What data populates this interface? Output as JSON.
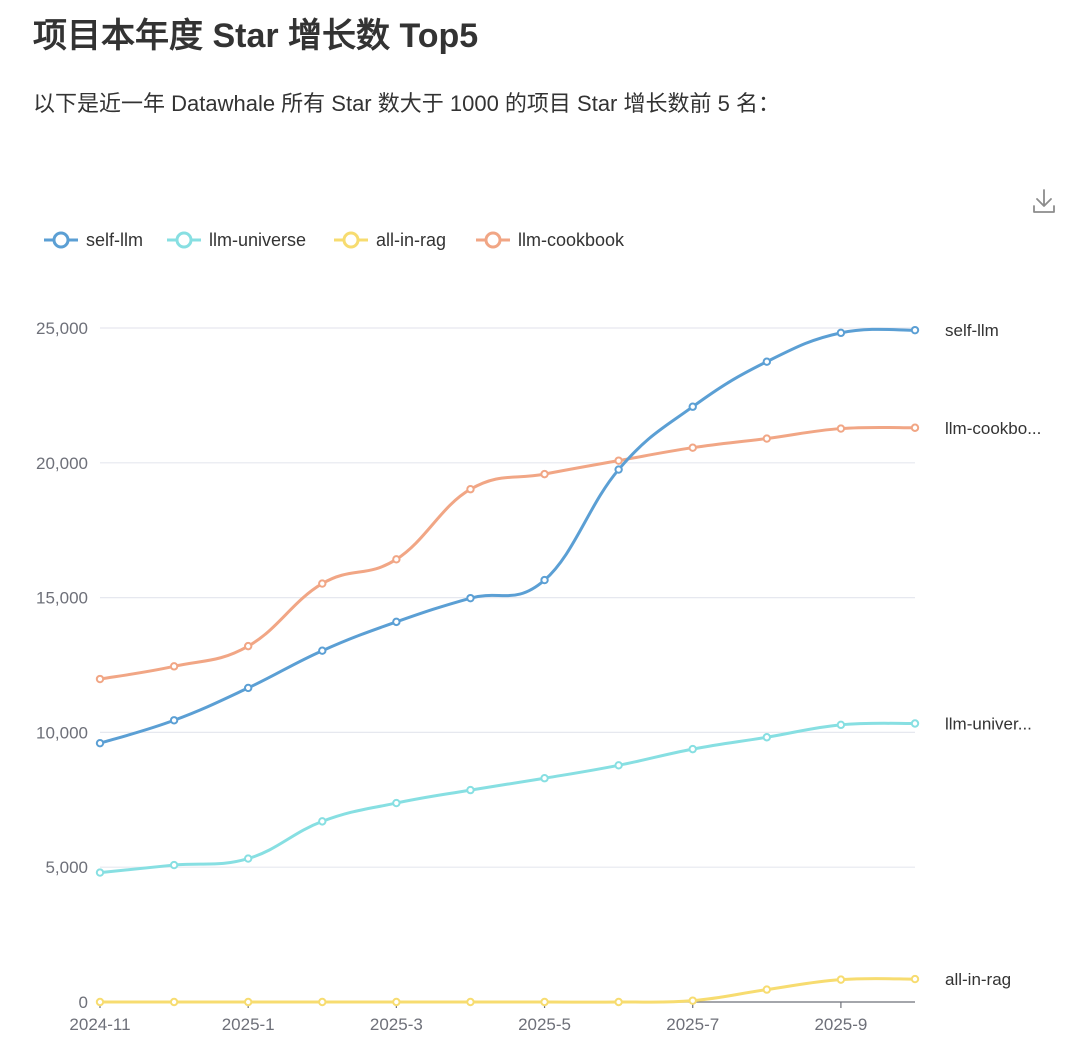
{
  "page": {
    "title": "项目本年度 Star 增长数 Top5",
    "description": "以下是近一年 Datawhale 所有 Star 数大于 1000 的项目 Star 增长数前 5 名："
  },
  "toolbar": {
    "download_icon": "download-icon"
  },
  "chart_data": {
    "type": "line",
    "smooth": true,
    "legend_position": "top-left",
    "grid": "horizontal",
    "x": [
      "2024-11",
      "2024-12",
      "2025-1",
      "2025-2",
      "2025-3",
      "2025-4",
      "2025-5",
      "2025-6",
      "2025-7",
      "2025-8",
      "2025-9",
      "2025-10"
    ],
    "x_tick_labels": [
      "2024-11",
      "2025-1",
      "2025-3",
      "2025-5",
      "2025-7",
      "2025-9"
    ],
    "ylim": [
      0,
      25000
    ],
    "y_ticks": [
      0,
      5000,
      10000,
      15000,
      20000,
      25000
    ],
    "y_tick_labels": [
      "0",
      "5,000",
      "10,000",
      "15,000",
      "20,000",
      "25,000"
    ],
    "series": [
      {
        "name": "self-llm",
        "end_label": "self-llm",
        "color": "#5b9fd4",
        "values": [
          9600,
          10450,
          11650,
          13030,
          14100,
          14980,
          15650,
          19750,
          22080,
          23750,
          24820,
          24920
        ]
      },
      {
        "name": "llm-universe",
        "end_label": "llm-univer...",
        "color": "#87dfe2",
        "values": [
          4800,
          5080,
          5320,
          6700,
          7380,
          7860,
          8300,
          8780,
          9380,
          9820,
          10280,
          10330
        ]
      },
      {
        "name": "all-in-rag",
        "end_label": "all-in-rag",
        "color": "#f7dc70",
        "values": [
          0,
          0,
          0,
          0,
          0,
          0,
          0,
          0,
          50,
          460,
          830,
          850
        ]
      },
      {
        "name": "llm-cookbook",
        "end_label": "llm-cookbo...",
        "color": "#f1a685",
        "values": [
          11980,
          12450,
          13200,
          15520,
          16420,
          19020,
          19580,
          20080,
          20560,
          20900,
          21270,
          21300
        ]
      }
    ]
  }
}
